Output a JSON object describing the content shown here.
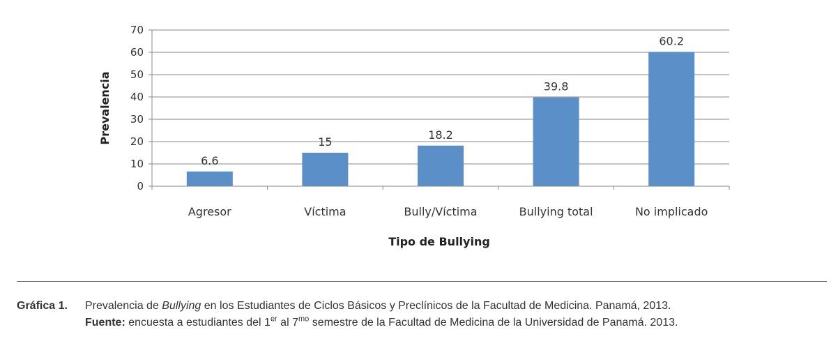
{
  "chart_data": {
    "type": "bar",
    "categories": [
      "Agresor",
      "Víctima",
      "Bully/Víctima",
      "Bullying total",
      "No implicado"
    ],
    "values": [
      6.6,
      15,
      18.2,
      39.8,
      60.2
    ],
    "data_labels": [
      "6.6",
      "15",
      "18.2",
      "39.8",
      "60.2"
    ],
    "xlabel": "Tipo de Bullying",
    "ylabel": "Prevalencia",
    "ylim": [
      0,
      70
    ],
    "yticks": [
      0,
      10,
      20,
      30,
      40,
      50,
      60,
      70
    ],
    "grid": true,
    "legend": "none",
    "bar_color": "#5b8fc7"
  },
  "caption": {
    "label": "Gráfica 1.",
    "text_pre": "Prevalencia de ",
    "text_italic": "Bullying",
    "text_post": " en los Estudiantes de Ciclos Básicos y Preclínicos de la Facultad de Medicina. Panamá, 2013.",
    "source_label": "Fuente:",
    "source_a": " encuesta a estudiantes del 1",
    "source_sup1": "er",
    "source_b": " al 7",
    "source_sup2": "mo",
    "source_c": " semestre de la Facultad de Medicina de la Universidad de Panamá. 2013."
  }
}
